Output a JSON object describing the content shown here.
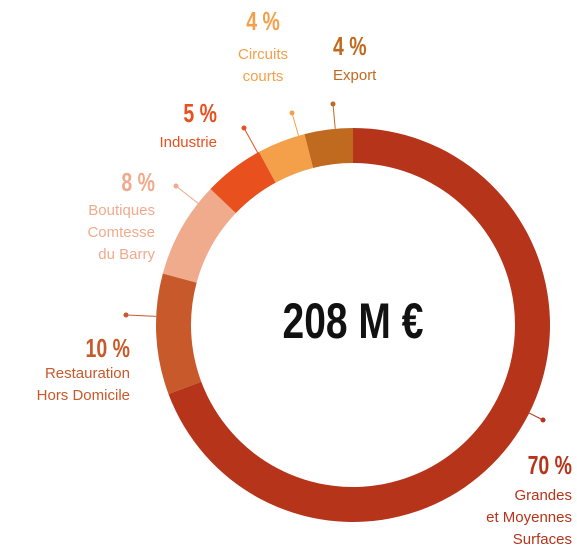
{
  "chart_data": {
    "type": "donut",
    "center_label": "208 M €",
    "categories": [
      [
        "Grandes",
        "et Moyennes",
        "Surfaces"
      ],
      [
        "Restauration",
        "Hors Domicile"
      ],
      [
        "Boutiques",
        "Comtesse",
        "du Barry"
      ],
      [
        "Industrie"
      ],
      [
        "Circuits",
        "courts"
      ],
      [
        "Export"
      ]
    ],
    "values": [
      70,
      10,
      8,
      5,
      4,
      4
    ],
    "value_labels": [
      "70 %",
      "10 %",
      "8 %",
      "5 %",
      "4 %",
      "4 %"
    ],
    "colors": [
      "#b5341a",
      "#c8592a",
      "#f0aa8c",
      "#e8501e",
      "#f4a04a",
      "#c06a20"
    ]
  }
}
